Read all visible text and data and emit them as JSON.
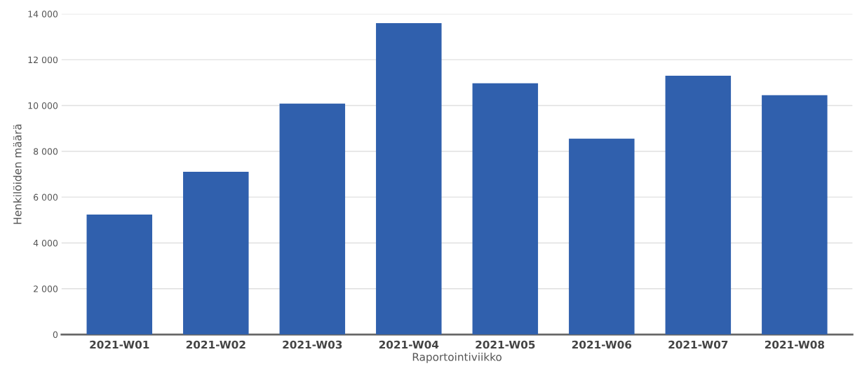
{
  "chart_data": {
    "type": "bar",
    "xlabel": "Raportointiviikko",
    "ylabel": "Henkilöiden määrä",
    "categories": [
      "2021-W01",
      "2021-W02",
      "2021-W03",
      "2021-W04",
      "2021-W05",
      "2021-W06",
      "2021-W07",
      "2021-W08"
    ],
    "values": [
      5240,
      7110,
      10080,
      13600,
      10970,
      8550,
      11300,
      10450
    ],
    "color": "#3060ad",
    "ylim": [
      0,
      14000
    ],
    "yticks": [
      0,
      {
        "value": 2000,
        "label": "2 000"
      },
      {
        "value": 4000,
        "label": "4 000"
      },
      {
        "value": 6000,
        "label": "6 000"
      },
      {
        "value": 8000,
        "label": "8 000"
      },
      {
        "value": 10000,
        "label": "10 000"
      },
      {
        "value": 12000,
        "label": "12 000"
      },
      {
        "value": 14000,
        "label": "14 000"
      }
    ],
    "grid": "y"
  }
}
